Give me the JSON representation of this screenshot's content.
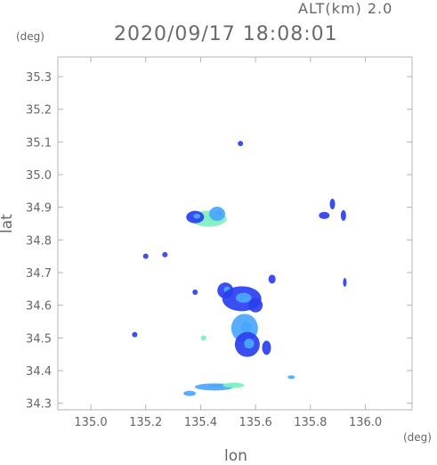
{
  "header": {
    "altitude_label": "ALT(km) 2.0",
    "timestamp": "2020/09/17 18:08:01"
  },
  "chart_data": {
    "type": "heatmap",
    "title": "2020/09/17 18:08:01",
    "xlabel": "lon",
    "ylabel": "lat",
    "x_unit": "(deg)",
    "y_unit": "(deg)",
    "xlim": [
      134.88,
      136.17
    ],
    "ylim": [
      34.28,
      35.36
    ],
    "x_ticks": [
      "135.0",
      "135.2",
      "135.4",
      "135.6",
      "135.8",
      "136.0"
    ],
    "y_ticks": [
      "34.3",
      "34.4",
      "34.5",
      "34.6",
      "34.7",
      "34.8",
      "34.9",
      "35.0",
      "35.1",
      "35.2",
      "35.3"
    ],
    "grid": false,
    "colors": {
      "low": "#2a3ff0",
      "mid": "#4aa6ff",
      "high": "#7ef0c0",
      "frame": "#b4b4b4"
    },
    "echoes": [
      {
        "lon": 135.545,
        "lat": 35.095,
        "level": "low"
      },
      {
        "lon": 135.43,
        "lat": 34.865,
        "level": "high"
      },
      {
        "lon": 135.38,
        "lat": 34.87,
        "level": "low"
      },
      {
        "lon": 135.46,
        "lat": 34.88,
        "level": "mid"
      },
      {
        "lon": 135.27,
        "lat": 34.755,
        "level": "low"
      },
      {
        "lon": 135.2,
        "lat": 34.75,
        "level": "low"
      },
      {
        "lon": 135.85,
        "lat": 34.875,
        "level": "low"
      },
      {
        "lon": 135.88,
        "lat": 34.91,
        "level": "low"
      },
      {
        "lon": 135.92,
        "lat": 34.875,
        "level": "low"
      },
      {
        "lon": 135.925,
        "lat": 34.67,
        "level": "low"
      },
      {
        "lon": 135.49,
        "lat": 34.645,
        "level": "low"
      },
      {
        "lon": 135.55,
        "lat": 34.62,
        "level": "low"
      },
      {
        "lon": 135.6,
        "lat": 34.6,
        "level": "low"
      },
      {
        "lon": 135.56,
        "lat": 34.53,
        "level": "mid"
      },
      {
        "lon": 135.57,
        "lat": 34.48,
        "level": "low"
      },
      {
        "lon": 135.64,
        "lat": 34.47,
        "level": "low"
      },
      {
        "lon": 135.66,
        "lat": 34.68,
        "level": "low"
      },
      {
        "lon": 135.41,
        "lat": 34.5,
        "level": "high"
      },
      {
        "lon": 135.16,
        "lat": 34.51,
        "level": "low"
      },
      {
        "lon": 135.38,
        "lat": 34.64,
        "level": "low"
      },
      {
        "lon": 135.45,
        "lat": 34.35,
        "level": "mid"
      },
      {
        "lon": 135.36,
        "lat": 34.33,
        "level": "mid"
      },
      {
        "lon": 135.52,
        "lat": 34.355,
        "level": "high"
      },
      {
        "lon": 135.73,
        "lat": 34.38,
        "level": "mid"
      }
    ]
  }
}
